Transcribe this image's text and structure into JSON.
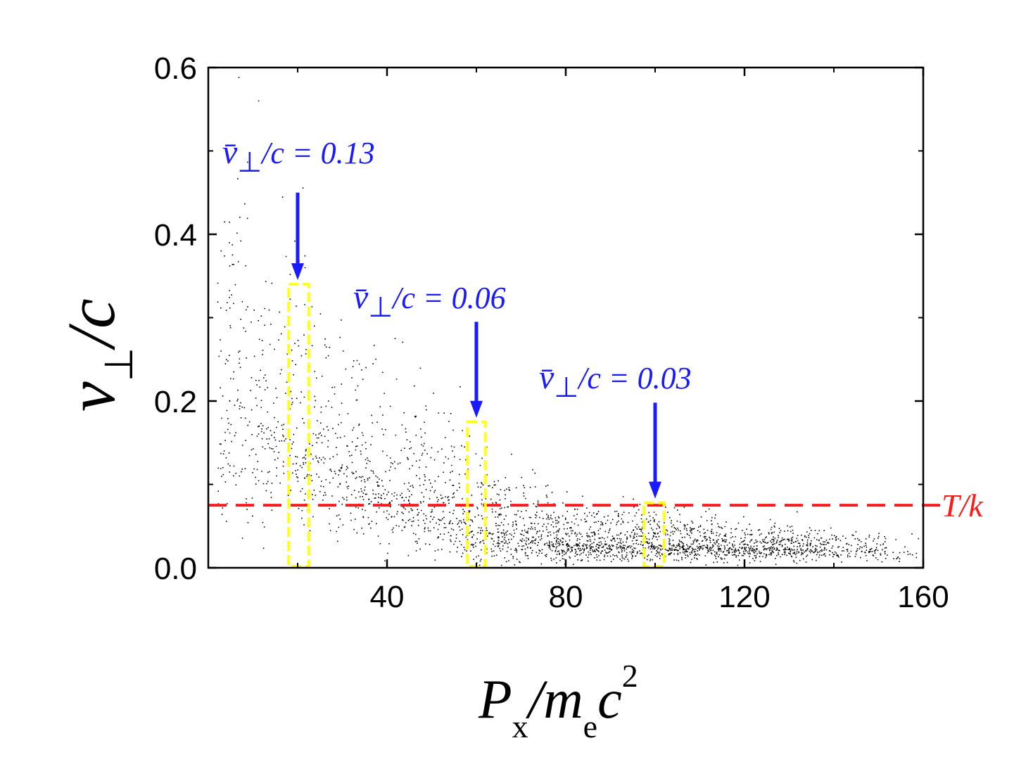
{
  "chart_data": {
    "type": "scatter",
    "title": "",
    "xlabel": "P_x/m_e c^2",
    "xlabel_parts": {
      "main1": "P",
      "sub1": "x",
      "slash": "/",
      "main2": "m",
      "sub2": "e",
      "main3": "c",
      "sup": "2"
    },
    "ylabel": "v_⊥/c",
    "ylabel_parts": {
      "v": "v",
      "perp": "⊥",
      "rest": "/c"
    },
    "xlim": [
      0,
      160
    ],
    "ylim": [
      0.0,
      0.6
    ],
    "xticks": [
      40,
      80,
      120,
      160
    ],
    "xtick_labels": [
      "40",
      "80",
      "120",
      "160"
    ],
    "yticks": [
      0.0,
      0.2,
      0.4,
      0.6
    ],
    "ytick_labels": [
      "0.0",
      "0.2",
      "0.4",
      "0.6"
    ],
    "density_profile": [
      {
        "x": 2,
        "y_center": 0.2,
        "y_spread": 0.12,
        "weight": 1.2
      },
      {
        "x": 20,
        "y_center": 0.15,
        "y_spread": 0.08,
        "weight": 1.4
      },
      {
        "x": 40,
        "y_center": 0.1,
        "y_spread": 0.06,
        "weight": 1.4
      },
      {
        "x": 60,
        "y_center": 0.05,
        "y_spread": 0.035,
        "weight": 1.6
      },
      {
        "x": 80,
        "y_center": 0.03,
        "y_spread": 0.018,
        "weight": 2.0
      },
      {
        "x": 100,
        "y_center": 0.028,
        "y_spread": 0.015,
        "weight": 2.0
      },
      {
        "x": 120,
        "y_center": 0.025,
        "y_spread": 0.012,
        "weight": 1.7
      },
      {
        "x": 140,
        "y_center": 0.022,
        "y_spread": 0.01,
        "weight": 1.1
      },
      {
        "x": 150,
        "y_center": 0.02,
        "y_spread": 0.009,
        "weight": 0.5
      },
      {
        "x": 160,
        "y_center": 0.02,
        "y_spread": 0.008,
        "weight": 0.15
      }
    ],
    "reference_line": {
      "y": 0.075,
      "label": "T/k",
      "color": "#ff1a1a",
      "style": "dashed"
    },
    "selection_boxes": [
      {
        "x_min": 18,
        "x_max": 22.5,
        "y_min": 0.0,
        "y_max": 0.34,
        "color": "#ffff1a"
      },
      {
        "x_min": 58,
        "x_max": 62,
        "y_min": 0.0,
        "y_max": 0.175,
        "color": "#ffff1a"
      },
      {
        "x_min": 97.5,
        "x_max": 102,
        "y_min": 0.0,
        "y_max": 0.078,
        "color": "#ffff1a"
      }
    ],
    "annotations": [
      {
        "text_prefix": "v̄",
        "text_perp": "⊥",
        "text_suffix": "/c = 0.13",
        "arrow_x": 20,
        "arrow_from_y": 0.45,
        "arrow_to_y": 0.345,
        "color": "#1a1aff"
      },
      {
        "text_prefix": "v̄",
        "text_perp": "⊥",
        "text_suffix": "/c = 0.06",
        "arrow_x": 60,
        "arrow_from_y": 0.295,
        "arrow_to_y": 0.18,
        "color": "#1a1aff"
      },
      {
        "text_prefix": "v̄",
        "text_perp": "⊥",
        "text_suffix": "/c = 0.03",
        "arrow_x": 100,
        "arrow_from_y": 0.198,
        "arrow_to_y": 0.083,
        "color": "#1a1aff"
      }
    ]
  }
}
